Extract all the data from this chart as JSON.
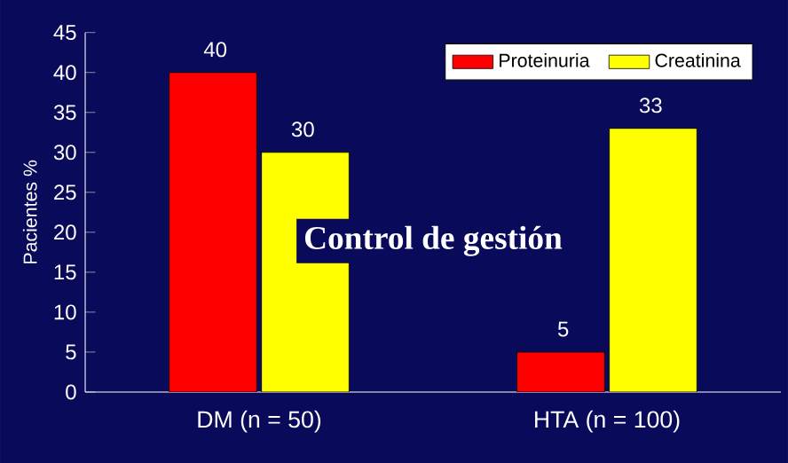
{
  "chart_data": {
    "type": "bar",
    "title": "Control de gestión",
    "ylabel": "Pacientes %",
    "categories": [
      "DM (n = 50)",
      "HTA (n = 100)"
    ],
    "series": [
      {
        "name": "Proteinuria",
        "color": "#ff0000",
        "values": [
          40,
          5
        ]
      },
      {
        "name": "Creatinina",
        "color": "#ffff00",
        "values": [
          30,
          33
        ]
      }
    ],
    "ylim": [
      0,
      45
    ],
    "yticks": [
      0,
      5,
      10,
      15,
      20,
      25,
      30,
      35,
      40,
      45
    ],
    "data_labels": true,
    "legend": "top right",
    "grid": false
  }
}
